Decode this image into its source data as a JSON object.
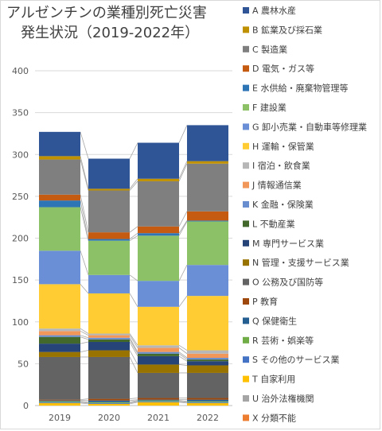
{
  "chart_data": {
    "type": "bar",
    "stacked": true,
    "title_line1": "アルゼンチンの業種別死亡災害",
    "title_line2": "発生状況（2019-2022年）",
    "categories": [
      "2019",
      "2020",
      "2021",
      "2022"
    ],
    "ylim": [
      0,
      400
    ],
    "yticks": [
      0,
      50,
      100,
      150,
      200,
      250,
      300,
      350,
      400
    ],
    "grid": true,
    "legend_position": "right",
    "series": [
      {
        "name": "X 分類不能",
        "color": "#ED7D31",
        "values": [
          0,
          0,
          0,
          0
        ]
      },
      {
        "name": "U 治外法権機関",
        "color": "#A5A5A5",
        "values": [
          0,
          0,
          0,
          0
        ]
      },
      {
        "name": "T 自家利用",
        "color": "#FFC000",
        "values": [
          3,
          2,
          4,
          3
        ]
      },
      {
        "name": "S その他のサービス業",
        "color": "#4472C4",
        "values": [
          1,
          1,
          1,
          1
        ]
      },
      {
        "name": "R 芸術・娯楽等",
        "color": "#70AD47",
        "values": [
          1,
          1,
          1,
          1
        ]
      },
      {
        "name": "Q 保健衛生",
        "color": "#255E91",
        "values": [
          1,
          2,
          1,
          2
        ]
      },
      {
        "name": "P 教育",
        "color": "#9E480E",
        "values": [
          1,
          2,
          2,
          2
        ]
      },
      {
        "name": "O 公務及び国防等",
        "color": "#636363",
        "values": [
          51,
          50,
          30,
          30
        ]
      },
      {
        "name": "N 管理・支援サービス業",
        "color": "#997300",
        "values": [
          6,
          8,
          10,
          9
        ]
      },
      {
        "name": "M 専門サービス業",
        "color": "#264478",
        "values": [
          10,
          10,
          10,
          5
        ]
      },
      {
        "name": "L 不動産業",
        "color": "#43682B",
        "values": [
          8,
          3,
          3,
          2
        ]
      },
      {
        "name": "K 金融・保険業",
        "color": "#698ED0",
        "values": [
          2,
          2,
          2,
          2
        ]
      },
      {
        "name": "J 情報通信業",
        "color": "#F1975A",
        "values": [
          5,
          3,
          5,
          5
        ]
      },
      {
        "name": "I 宿泊・飲食業",
        "color": "#B7B7B7",
        "values": [
          3,
          2,
          3,
          4
        ]
      },
      {
        "name": "H 運輸・保管業",
        "color": "#FFCD33",
        "values": [
          53,
          48,
          46,
          65
        ]
      },
      {
        "name": "G 卸小売業・自動車等修理業",
        "color": "#6A8FD6",
        "values": [
          40,
          22,
          31,
          37
        ]
      },
      {
        "name": "F 建設業",
        "color": "#8CC168",
        "values": [
          52,
          41,
          54,
          52
        ]
      },
      {
        "name": "E 水供給・廃棄物管理等",
        "color": "#2E75B6",
        "values": [
          8,
          2,
          3,
          1
        ]
      },
      {
        "name": "D 電気・ガス等",
        "color": "#C55A11",
        "values": [
          7,
          8,
          8,
          11
        ]
      },
      {
        "name": "C 製造業",
        "color": "#7F7F7F",
        "values": [
          42,
          50,
          54,
          57
        ]
      },
      {
        "name": "B 鉱業及び採石業",
        "color": "#BF9000",
        "values": [
          4,
          2,
          3,
          3
        ]
      },
      {
        "name": "A 農林水産",
        "color": "#2F5597",
        "values": [
          29,
          36,
          43,
          43
        ]
      }
    ]
  }
}
